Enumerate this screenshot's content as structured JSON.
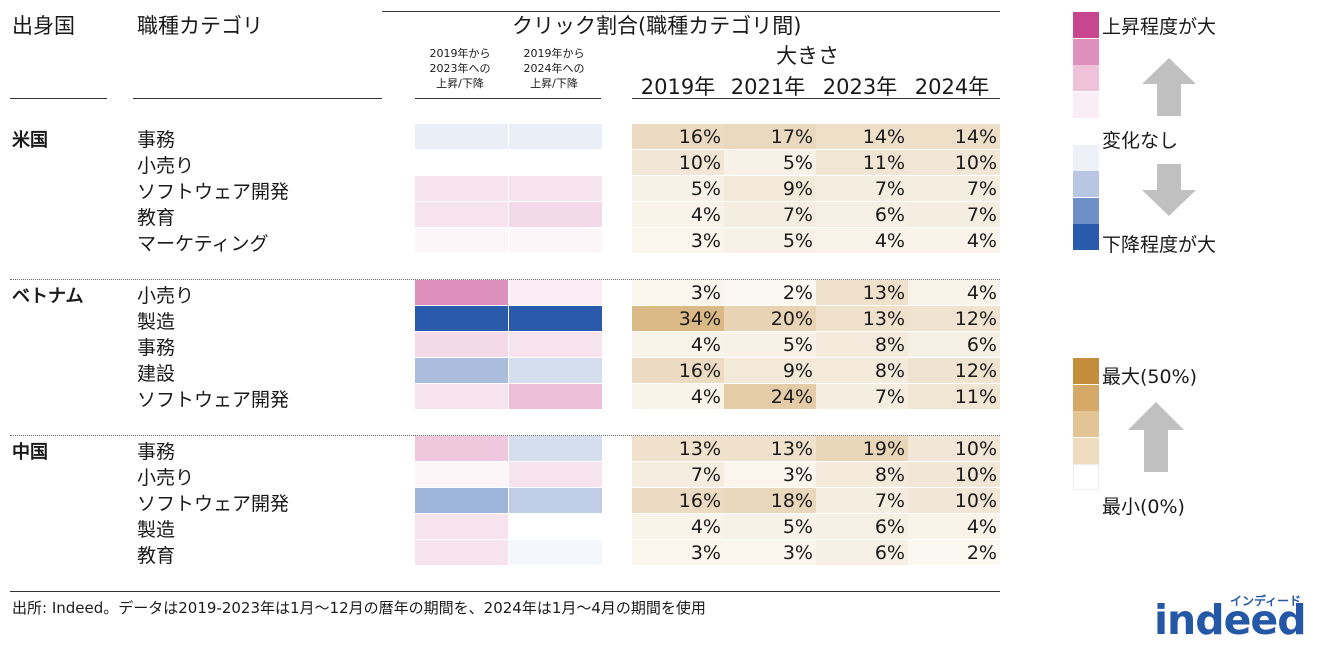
{
  "header": {
    "country": "出身国",
    "category": "職種カテゴリ",
    "click_share": "クリック割合(職種カテゴリ間)",
    "size": "大きさ",
    "change_2023": "2019年から\n2023年への\n上昇/下降",
    "change_2024": "2019年から\n2024年への\n上昇/下降",
    "years": [
      "2019年",
      "2021年",
      "2023年",
      "2024年"
    ]
  },
  "chart_data": {
    "type": "table",
    "title": "クリック割合(職種カテゴリ間)",
    "columns": [
      "2019年",
      "2021年",
      "2023年",
      "2024年"
    ],
    "groups": [
      {
        "country": "米国",
        "rows": [
          {
            "category": "事務",
            "values": [
              "16%",
              "17%",
              "14%",
              "14%"
            ],
            "nums": [
              16,
              17,
              14,
              14
            ],
            "change": [
              -0.1,
              -0.1
            ]
          },
          {
            "category": "小売り",
            "values": [
              "10%",
              "5%",
              "11%",
              "10%"
            ],
            "nums": [
              10,
              5,
              11,
              10
            ],
            "change": [
              0.0,
              0.0
            ]
          },
          {
            "category": "ソフトウェア開発",
            "values": [
              "5%",
              "9%",
              "7%",
              "7%"
            ],
            "nums": [
              5,
              9,
              7,
              7
            ],
            "change": [
              0.15,
              0.15
            ]
          },
          {
            "category": "教育",
            "values": [
              "4%",
              "7%",
              "6%",
              "7%"
            ],
            "nums": [
              4,
              7,
              6,
              7
            ],
            "change": [
              0.15,
              0.2
            ]
          },
          {
            "category": "マーケティング",
            "values": [
              "3%",
              "5%",
              "4%",
              "4%"
            ],
            "nums": [
              3,
              5,
              4,
              4
            ],
            "change": [
              0.05,
              0.05
            ]
          }
        ]
      },
      {
        "country": "ベトナム",
        "rows": [
          {
            "category": "小売り",
            "values": [
              "3%",
              "2%",
              "13%",
              "4%"
            ],
            "nums": [
              3,
              2,
              13,
              4
            ],
            "change": [
              0.6,
              0.1
            ]
          },
          {
            "category": "製造",
            "values": [
              "34%",
              "20%",
              "13%",
              "12%"
            ],
            "nums": [
              34,
              20,
              13,
              12
            ],
            "change": [
              -1.0,
              -1.0
            ]
          },
          {
            "category": "事務",
            "values": [
              "4%",
              "5%",
              "8%",
              "6%"
            ],
            "nums": [
              4,
              5,
              8,
              6
            ],
            "change": [
              0.2,
              0.15
            ]
          },
          {
            "category": "建設",
            "values": [
              "16%",
              "9%",
              "8%",
              "12%"
            ],
            "nums": [
              16,
              9,
              8,
              12
            ],
            "change": [
              -0.4,
              -0.2
            ]
          },
          {
            "category": "ソフトウェア開発",
            "values": [
              "4%",
              "24%",
              "7%",
              "11%"
            ],
            "nums": [
              4,
              24,
              7,
              11
            ],
            "change": [
              0.15,
              0.35
            ]
          }
        ]
      },
      {
        "country": "中国",
        "rows": [
          {
            "category": "事務",
            "values": [
              "13%",
              "13%",
              "19%",
              "10%"
            ],
            "nums": [
              13,
              13,
              19,
              10
            ],
            "change": [
              0.3,
              -0.2
            ]
          },
          {
            "category": "小売り",
            "values": [
              "7%",
              "3%",
              "8%",
              "10%"
            ],
            "nums": [
              7,
              3,
              8,
              10
            ],
            "change": [
              0.05,
              0.15
            ]
          },
          {
            "category": "ソフトウェア開発",
            "values": [
              "16%",
              "18%",
              "7%",
              "10%"
            ],
            "nums": [
              16,
              18,
              7,
              10
            ],
            "change": [
              -0.45,
              -0.3
            ]
          },
          {
            "category": "製造",
            "values": [
              "4%",
              "5%",
              "6%",
              "4%"
            ],
            "nums": [
              4,
              5,
              6,
              4
            ],
            "change": [
              0.15,
              0.0
            ]
          },
          {
            "category": "教育",
            "values": [
              "3%",
              "3%",
              "6%",
              "2%"
            ],
            "nums": [
              3,
              3,
              6,
              2
            ],
            "change": [
              0.15,
              -0.05
            ]
          }
        ]
      }
    ],
    "size_scale": {
      "min": 0,
      "max": 50
    }
  },
  "legend_change": {
    "top_label": "上昇程度が大",
    "mid_label": "変化なし",
    "bottom_label": "下降程度が大",
    "swatches": [
      "#c8468f",
      "#df8fbd",
      "#eec3da",
      "#f9eef4",
      "#ffffff",
      "#eef1f8",
      "#b9c6e3",
      "#6f8fc7",
      "#2a5aab"
    ]
  },
  "legend_size": {
    "max_label": "最大(50%)",
    "min_label": "最小(0%)",
    "swatches": [
      "#c38d3c",
      "#d4a968",
      "#e3c595",
      "#efdcbf",
      "#ffffff"
    ]
  },
  "colors": {
    "size_max": "#c38d3c",
    "rise": "#c8468f",
    "fall": "#2a5aab",
    "arrow": "#c0c0c0",
    "brand": "#2557a7"
  },
  "source": "出所: Indeed。データは2019-2023年は1月～12月の暦年の期間を、2024年は1月～4月の期間を使用",
  "logo": {
    "kana": "インディード",
    "word": "indeed"
  }
}
